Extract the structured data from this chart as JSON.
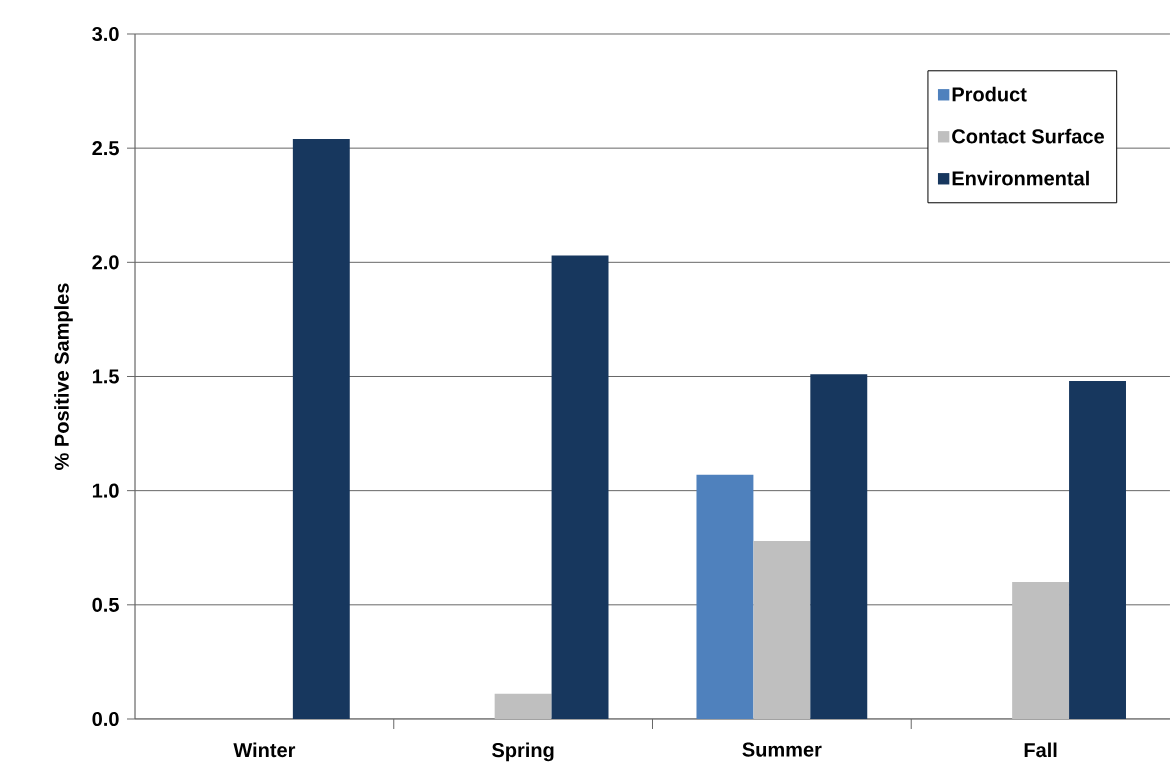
{
  "chart_data": {
    "type": "bar",
    "ylabel": "% Positive Samples",
    "categories": [
      "Winter",
      "Spring",
      "Summer",
      "Fall"
    ],
    "series": [
      {
        "name": "Product",
        "color": "#4f81bd",
        "values": [
          0,
          0,
          1.07,
          0
        ]
      },
      {
        "name": "Contact Surface",
        "color": "#bfbfbf",
        "values": [
          0,
          0.11,
          0.78,
          0.6
        ]
      },
      {
        "name": "Environmental",
        "color": "#17375e",
        "values": [
          2.54,
          2.03,
          1.51,
          1.48
        ]
      }
    ],
    "ylim": [
      0,
      3.0
    ],
    "yticks": [
      {
        "value": 0,
        "label": "0.0"
      },
      {
        "value": 0.5,
        "label": "0.5"
      },
      {
        "value": 1.0,
        "label": "1.0"
      },
      {
        "value": 1.5,
        "label": "1.5"
      },
      {
        "value": 2.0,
        "label": "2.0"
      },
      {
        "value": 2.5,
        "label": "2.5"
      },
      {
        "value": 3.0,
        "label": "3.0"
      }
    ],
    "grid": "y",
    "legend": "top right"
  }
}
